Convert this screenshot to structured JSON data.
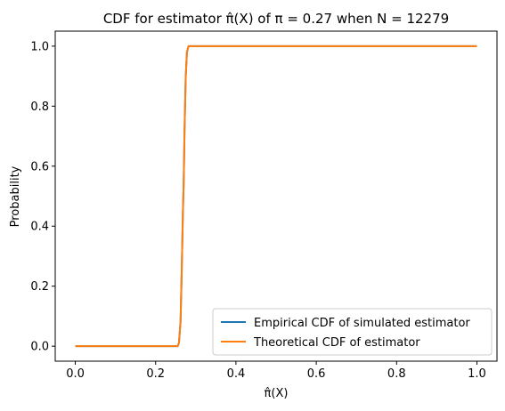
{
  "chart_data": {
    "type": "line",
    "title": "CDF for estimator π̂(X) of π = 0.27 when N = 12279",
    "xlabel": "π̂(X)",
    "ylabel": "Probability",
    "xlim": [
      -0.05,
      1.05
    ],
    "ylim": [
      -0.05,
      1.05
    ],
    "xticks": [
      0.0,
      0.2,
      0.4,
      0.6,
      0.8,
      1.0
    ],
    "xtick_labels": [
      "0.0",
      "0.2",
      "0.4",
      "0.6",
      "0.8",
      "1.0"
    ],
    "yticks": [
      0.0,
      0.2,
      0.4,
      0.6,
      0.8,
      1.0
    ],
    "ytick_labels": [
      "0.0",
      "0.2",
      "0.4",
      "0.6",
      "0.8",
      "1.0"
    ],
    "grid": false,
    "legend_position": "lower right",
    "series": [
      {
        "name": "Empirical CDF of simulated estimator",
        "color": "#1f77b4",
        "x": [
          0.0,
          0.255,
          0.258,
          0.262,
          0.265,
          0.268,
          0.27,
          0.272,
          0.275,
          0.278,
          0.282,
          0.285,
          1.0
        ],
        "y": [
          0.0,
          0.0,
          0.01,
          0.08,
          0.25,
          0.45,
          0.55,
          0.72,
          0.9,
          0.98,
          1.0,
          1.0,
          1.0
        ]
      },
      {
        "name": "Theoretical CDF of estimator",
        "color": "#ff7f0e",
        "x": [
          0.0,
          0.255,
          0.258,
          0.262,
          0.265,
          0.268,
          0.27,
          0.272,
          0.275,
          0.278,
          0.282,
          0.285,
          1.0
        ],
        "y": [
          0.0,
          0.0,
          0.01,
          0.08,
          0.25,
          0.45,
          0.55,
          0.72,
          0.9,
          0.98,
          1.0,
          1.0,
          1.0
        ]
      }
    ]
  }
}
